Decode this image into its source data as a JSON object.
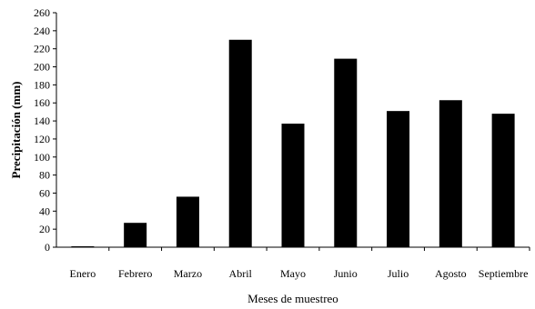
{
  "chart_data": {
    "type": "bar",
    "categories": [
      "Enero",
      "Febrero",
      "Marzo",
      "Abril",
      "Mayo",
      "Junio",
      "Julio",
      "Agosto",
      "Septiembre"
    ],
    "values": [
      1,
      27,
      56,
      230,
      137,
      209,
      151,
      163,
      148
    ],
    "xlabel": "Meses de muestreo",
    "ylabel": "Precipitación (mm)",
    "ylim": [
      0,
      260
    ],
    "yticks": [
      "0",
      "20",
      "40",
      "60",
      "80",
      "100",
      "120",
      "140",
      "160",
      "180",
      "200",
      "220",
      "240",
      "260"
    ],
    "grid": false,
    "bar_color": "#000000"
  }
}
